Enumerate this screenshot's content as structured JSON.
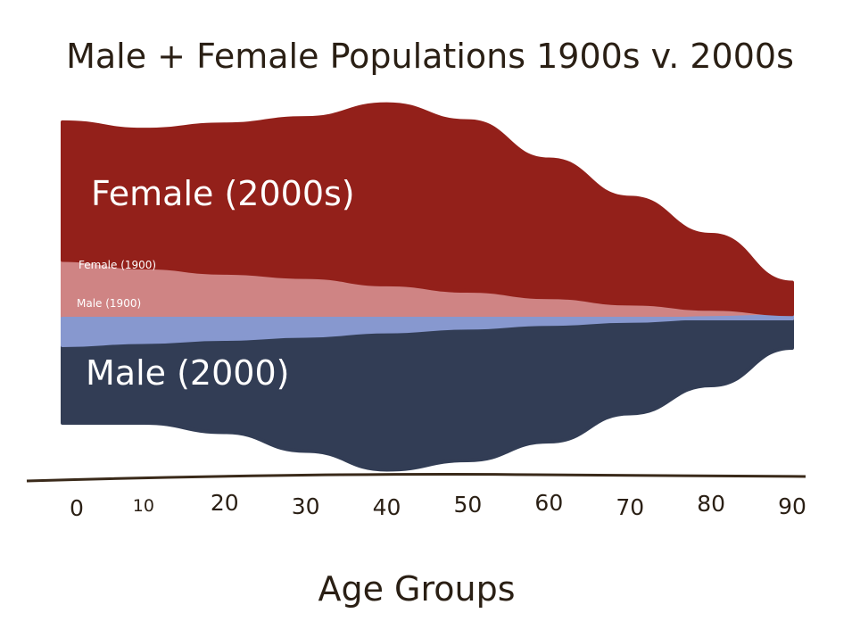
{
  "chart_data": {
    "type": "area",
    "title": "Male + Female Populations 1900s v. 2000s",
    "xlabel": "Age Groups",
    "ylabel": "",
    "x": [
      0,
      10,
      20,
      30,
      40,
      50,
      60,
      70,
      80,
      90
    ],
    "x_tick_labels": [
      "0",
      "10",
      "20",
      "30",
      "40",
      "50",
      "60",
      "70",
      "80",
      "90"
    ],
    "grid": false,
    "legend": "labels inside areas",
    "series": [
      {
        "name": "Female (2000s)",
        "color": "#93201a",
        "values": [
          13,
          13,
          14,
          15,
          17,
          16,
          13,
          10,
          7,
          3
        ]
      },
      {
        "name": "Female (1900)",
        "color": "#cf8484",
        "values": [
          5.5,
          4.8,
          4.3,
          3.9,
          3.2,
          2.6,
          2.0,
          1.4,
          0.9,
          0.4
        ]
      },
      {
        "name": "Male (1900)",
        "color": "#8798cf",
        "values": [
          5.0,
          4.5,
          4.0,
          3.5,
          2.8,
          2.2,
          1.6,
          1.1,
          0.6,
          0.3
        ]
      },
      {
        "name": "Male (2000)",
        "color": "#323d55",
        "values": [
          10,
          10,
          11,
          13,
          15,
          14,
          12,
          9,
          6,
          2
        ]
      }
    ]
  },
  "labels": {
    "female_2000": "Female (2000s)",
    "female_1900": "Female (1900)",
    "male_1900": "Male (1900)",
    "male_2000": "Male (2000)"
  },
  "colors": {
    "ink": "#2a1f14",
    "axis": "#3a2a1a"
  }
}
